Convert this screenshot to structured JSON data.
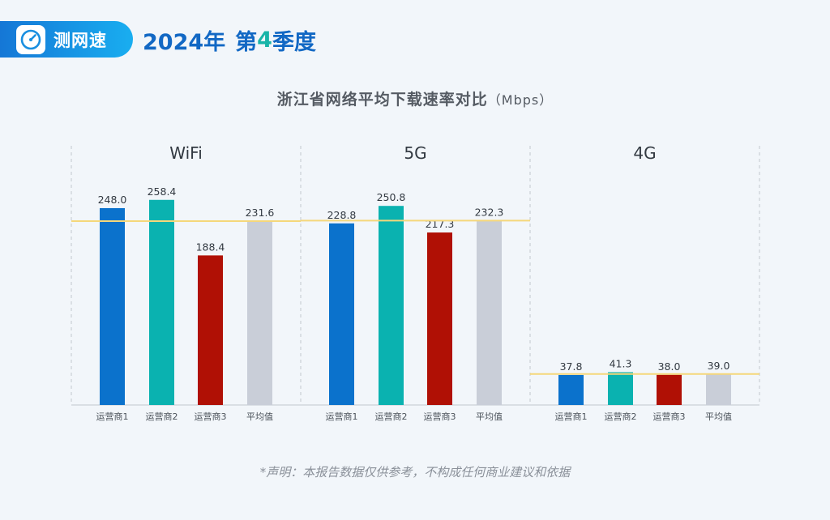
{
  "header": {
    "app_name": "测网速",
    "year_label": "2024年",
    "quarter_prefix": "第",
    "quarter_number": "4",
    "quarter_suffix": "季度",
    "icon": "speedometer-icon"
  },
  "chart_data": {
    "type": "bar",
    "title": "浙江省网络平均下载速率对比",
    "unit": "（Mbps）",
    "categories": [
      "运营商1",
      "运营商2",
      "运营商3",
      "平均值"
    ],
    "colors": [
      "#0b72cc",
      "#0ab2b0",
      "#b01005",
      "#c9ced8"
    ],
    "average_line_color": "#f5d77a",
    "ylim": [
      0,
      300
    ],
    "panels": [
      {
        "name": "WiFi",
        "values": [
          248.0,
          258.4,
          188.4,
          231.6
        ],
        "labels": [
          "248.0",
          "258.4",
          "188.4",
          "231.6"
        ]
      },
      {
        "name": "5G",
        "values": [
          228.8,
          250.8,
          217.3,
          232.3
        ],
        "labels": [
          "228.8",
          "250.8",
          "217.3",
          "232.3"
        ]
      },
      {
        "name": "4G",
        "values": [
          37.8,
          41.3,
          38.0,
          39.0
        ],
        "labels": [
          "37.8",
          "41.3",
          "38.0",
          "39.0"
        ]
      }
    ]
  },
  "footnote": "*声明：本报告数据仅供参考，不构成任何商业建议和依据"
}
